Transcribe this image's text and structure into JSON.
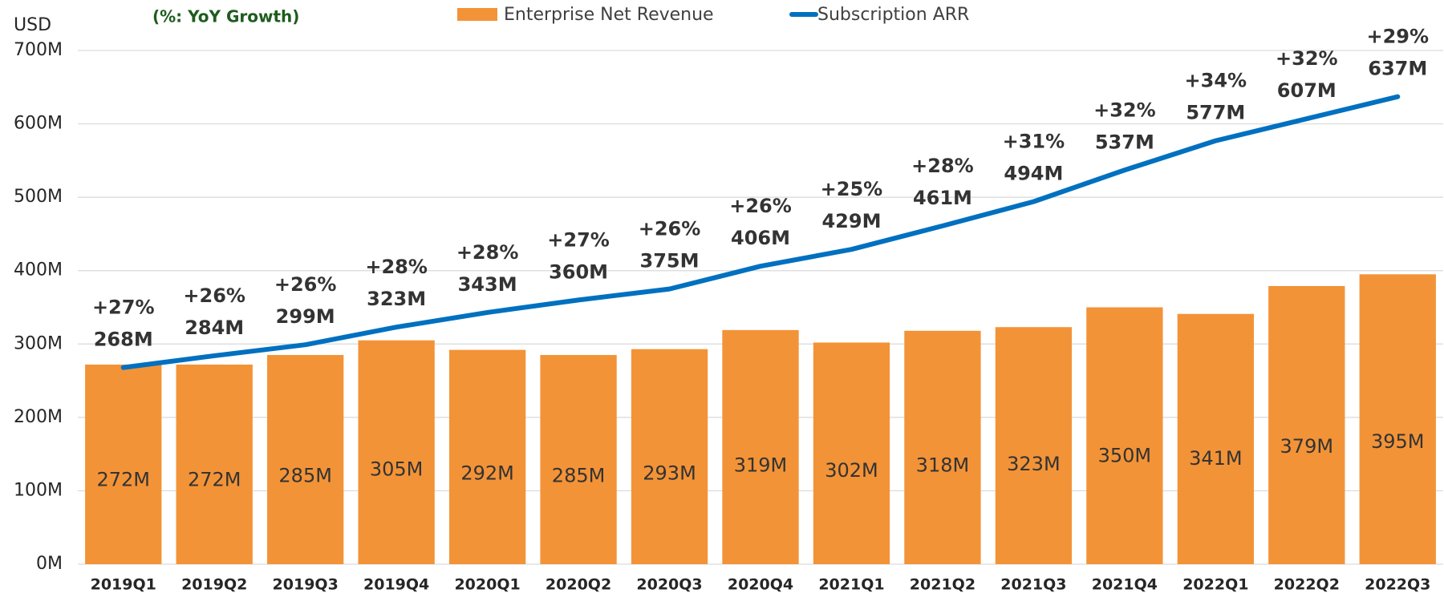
{
  "chart_data": {
    "type": "bar-line",
    "annotation": "(%: YoY Growth)",
    "y_label": "USD",
    "categories": [
      "2019Q1",
      "2019Q2",
      "2019Q3",
      "2019Q4",
      "2020Q1",
      "2020Q2",
      "2020Q3",
      "2020Q4",
      "2021Q1",
      "2021Q2",
      "2021Q3",
      "2021Q4",
      "2022Q1",
      "2022Q2",
      "2022Q3"
    ],
    "series": [
      {
        "name": "Enterprise Net Revenue",
        "type": "bar",
        "color": "#f39337",
        "values": [
          272,
          272,
          285,
          305,
          292,
          285,
          293,
          319,
          302,
          318,
          323,
          350,
          341,
          379,
          395
        ],
        "value_labels": [
          "272M",
          "272M",
          "285M",
          "305M",
          "292M",
          "285M",
          "293M",
          "319M",
          "302M",
          "318M",
          "323M",
          "350M",
          "341M",
          "379M",
          "395M"
        ]
      },
      {
        "name": "Subscription ARR",
        "type": "line",
        "color": "#0070c0",
        "values": [
          268,
          284,
          299,
          323,
          343,
          360,
          375,
          406,
          429,
          461,
          494,
          537,
          577,
          607,
          637
        ],
        "value_labels": [
          "268M",
          "284M",
          "299M",
          "323M",
          "343M",
          "360M",
          "375M",
          "406M",
          "429M",
          "461M",
          "494M",
          "537M",
          "577M",
          "607M",
          "637M"
        ],
        "growth": [
          27,
          26,
          26,
          28,
          28,
          27,
          26,
          26,
          25,
          28,
          31,
          32,
          34,
          32,
          29
        ],
        "growth_labels": [
          "+27%",
          "+26%",
          "+26%",
          "+28%",
          "+28%",
          "+27%",
          "+26%",
          "+26%",
          "+25%",
          "+28%",
          "+31%",
          "+32%",
          "+34%",
          "+32%",
          "+29%"
        ]
      }
    ],
    "ylim": [
      0,
      700
    ],
    "yticks": [
      {
        "value": 0,
        "label": "0M"
      },
      {
        "value": 100,
        "label": "100M"
      },
      {
        "value": 200,
        "label": "200M"
      },
      {
        "value": 300,
        "label": "300M"
      },
      {
        "value": 400,
        "label": "400M"
      },
      {
        "value": 500,
        "label": "500M"
      },
      {
        "value": 600,
        "label": "600M"
      },
      {
        "value": 700,
        "label": "700M"
      }
    ],
    "grid": true
  }
}
